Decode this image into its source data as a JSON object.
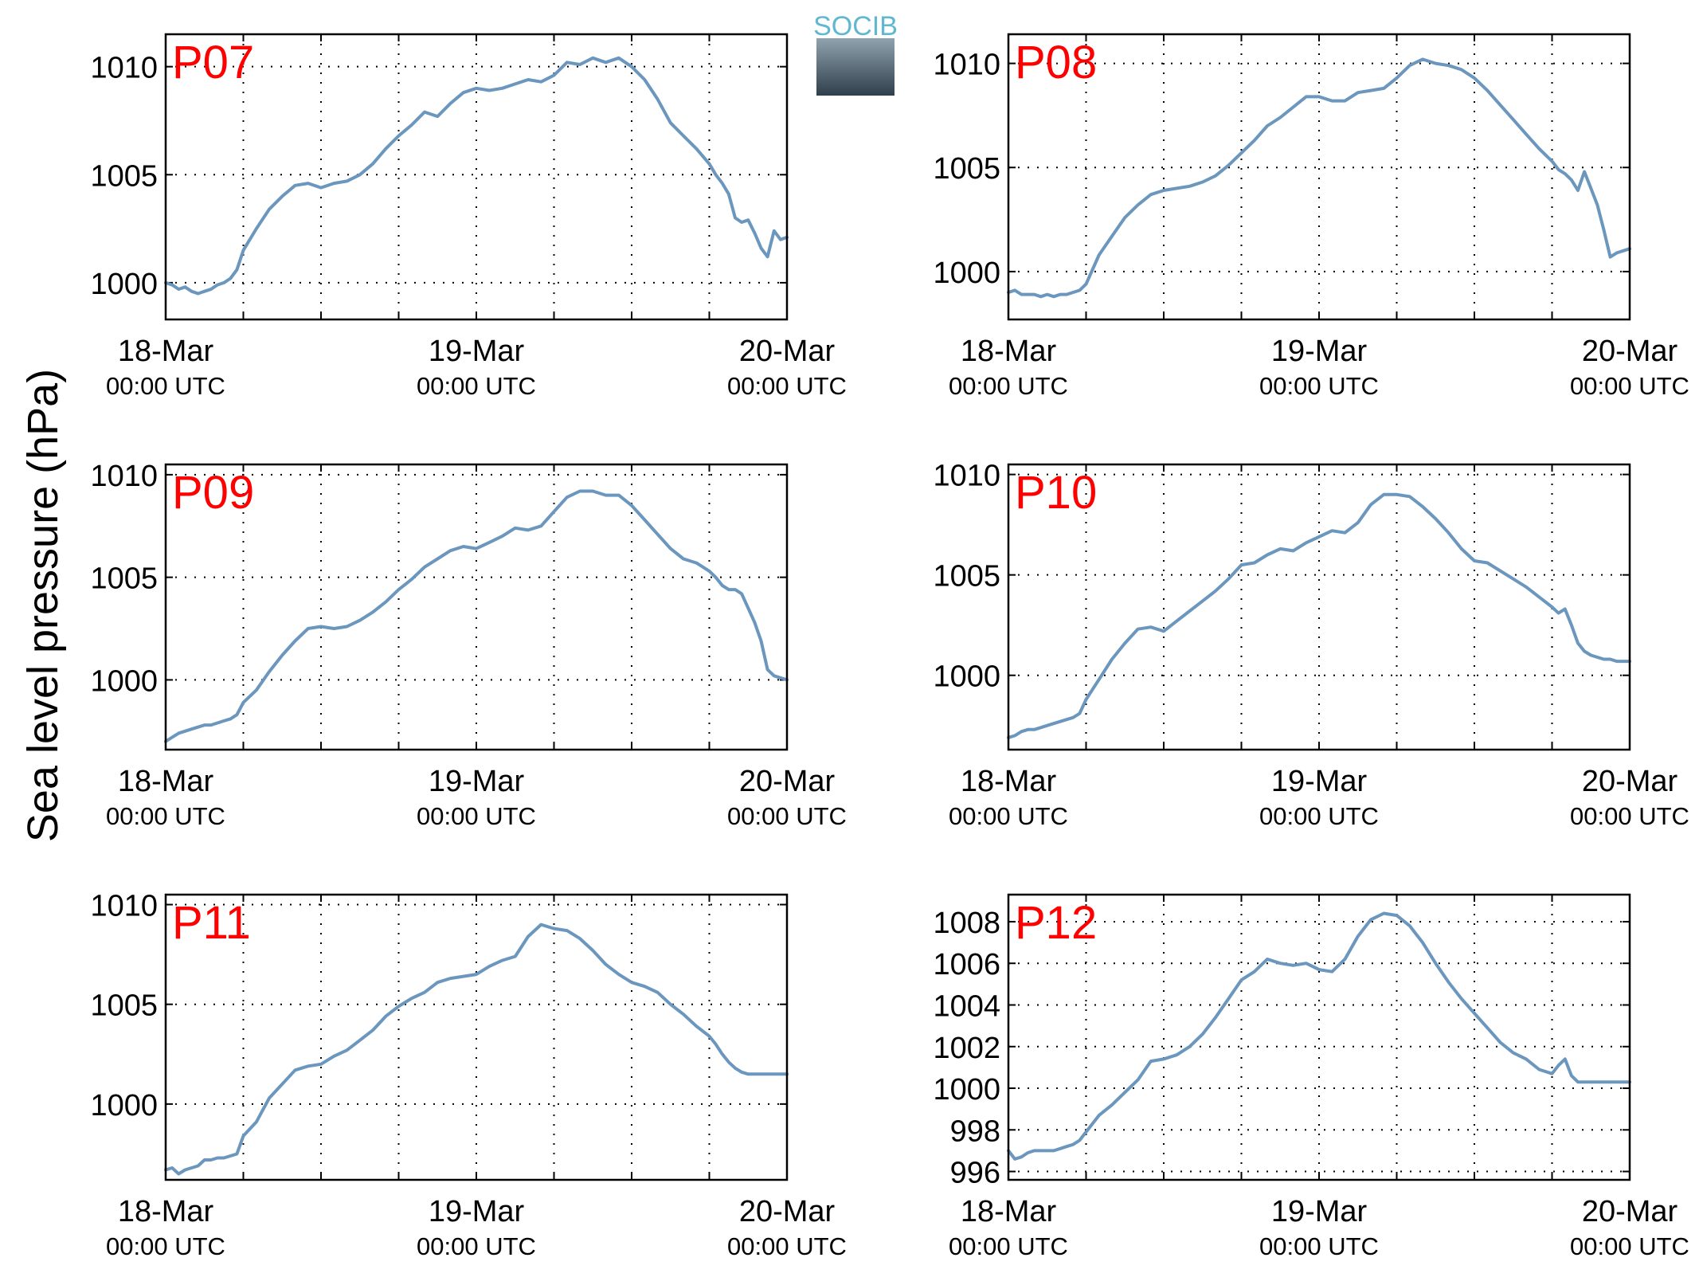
{
  "figure": {
    "ylabel": "Sea level pressure (hPa)",
    "logo_text": "SOCIB",
    "colors": {
      "line": "#6b96bd",
      "panel_label": "#ff0000",
      "axis": "#000000",
      "grid": "#000000"
    },
    "x_ticks": [
      {
        "t": 0,
        "date": "18-Mar",
        "time": "00:00 UTC"
      },
      {
        "t": 24,
        "date": "19-Mar",
        "time": "00:00 UTC"
      },
      {
        "t": 48,
        "date": "20-Mar",
        "time": "00:00 UTC"
      }
    ]
  },
  "chart_data": [
    {
      "type": "line",
      "label": "P07",
      "xlim": [
        0,
        48
      ],
      "ylim": [
        998.3,
        1011.5
      ],
      "yticks": [
        1000,
        1005,
        1010
      ],
      "grid": true,
      "x_hours_grid": [
        6,
        12,
        18,
        30,
        36,
        42
      ],
      "series": [
        {
          "x": [
            0,
            0.5,
            1,
            1.5,
            2,
            2.5,
            3,
            3.5,
            4,
            4.5,
            5,
            5.5,
            6,
            7,
            8,
            9,
            10,
            11,
            12,
            13,
            14,
            15,
            16,
            17,
            18,
            19,
            20,
            21,
            22,
            23,
            24,
            25,
            26,
            27,
            28,
            29,
            30,
            31,
            32,
            33,
            34,
            35,
            36,
            37,
            38,
            39,
            40,
            41,
            42,
            42.5,
            43,
            43.5,
            44,
            44.5,
            45,
            45.5,
            46,
            46.5,
            47,
            47.5,
            48
          ],
          "y": [
            1000,
            999.9,
            999.7,
            999.8,
            999.6,
            999.5,
            999.6,
            999.7,
            999.9,
            1000,
            1000.2,
            1000.6,
            1001.5,
            1002.5,
            1003.4,
            1004.0,
            1004.5,
            1004.6,
            1004.4,
            1004.6,
            1004.7,
            1005.0,
            1005.5,
            1006.2,
            1006.8,
            1007.3,
            1007.9,
            1007.7,
            1008.3,
            1008.8,
            1009.0,
            1008.9,
            1009.0,
            1009.2,
            1009.4,
            1009.3,
            1009.6,
            1010.2,
            1010.1,
            1010.4,
            1010.2,
            1010.4,
            1010.0,
            1009.4,
            1008.5,
            1007.4,
            1006.8,
            1006.2,
            1005.5,
            1005.0,
            1004.6,
            1004.1,
            1003.0,
            1002.8,
            1002.9,
            1002.3,
            1001.6,
            1001.2,
            1002.4,
            1002.0,
            1002.1
          ]
        }
      ]
    },
    {
      "type": "line",
      "label": "P08",
      "xlim": [
        0,
        48
      ],
      "ylim": [
        997.7,
        1011.4
      ],
      "yticks": [
        1000,
        1005,
        1010
      ],
      "grid": true,
      "x_hours_grid": [
        6,
        12,
        18,
        30,
        36,
        42
      ],
      "series": [
        {
          "x": [
            0,
            0.5,
            1,
            1.5,
            2,
            2.5,
            3,
            3.5,
            4,
            4.5,
            5,
            5.5,
            6,
            7,
            8,
            9,
            10,
            11,
            12,
            13,
            14,
            15,
            16,
            17,
            18,
            19,
            20,
            21,
            22,
            23,
            24,
            25,
            26,
            27,
            28,
            29,
            30,
            31,
            32,
            33,
            34,
            35,
            36,
            37,
            38,
            39,
            40,
            41,
            42,
            42.5,
            43,
            43.5,
            44,
            44.5,
            45,
            45.5,
            46,
            46.5,
            47,
            47.5,
            48
          ],
          "y": [
            999,
            999.1,
            998.9,
            998.9,
            998.9,
            998.8,
            998.9,
            998.8,
            998.9,
            998.9,
            999,
            999.1,
            999.4,
            1000.8,
            1001.7,
            1002.6,
            1003.2,
            1003.7,
            1003.9,
            1004.0,
            1004.1,
            1004.3,
            1004.6,
            1005.1,
            1005.7,
            1006.3,
            1007.0,
            1007.4,
            1007.9,
            1008.4,
            1008.4,
            1008.2,
            1008.2,
            1008.6,
            1008.7,
            1008.8,
            1009.3,
            1009.9,
            1010.2,
            1010.0,
            1009.9,
            1009.7,
            1009.3,
            1008.7,
            1008.0,
            1007.3,
            1006.6,
            1005.9,
            1005.3,
            1004.9,
            1004.7,
            1004.4,
            1003.9,
            1004.8,
            1004.0,
            1003.2,
            1002.0,
            1000.7,
            1000.9,
            1001.0,
            1001.1
          ]
        }
      ]
    },
    {
      "type": "line",
      "label": "P09",
      "xlim": [
        0,
        48
      ],
      "ylim": [
        996.6,
        1010.5
      ],
      "yticks": [
        1000,
        1005,
        1010
      ],
      "grid": true,
      "x_hours_grid": [
        6,
        12,
        18,
        30,
        36,
        42
      ],
      "series": [
        {
          "x": [
            0,
            0.5,
            1,
            1.5,
            2,
            2.5,
            3,
            3.5,
            4,
            4.5,
            5,
            5.5,
            6,
            7,
            8,
            9,
            10,
            11,
            12,
            13,
            14,
            15,
            16,
            17,
            18,
            19,
            20,
            21,
            22,
            23,
            24,
            25,
            26,
            27,
            28,
            29,
            30,
            31,
            32,
            33,
            34,
            35,
            36,
            37,
            38,
            39,
            40,
            41,
            42,
            42.5,
            43,
            43.5,
            44,
            44.5,
            45,
            45.5,
            46,
            46.5,
            47,
            47.5,
            48
          ],
          "y": [
            997.0,
            997.2,
            997.4,
            997.5,
            997.6,
            997.7,
            997.8,
            997.8,
            997.9,
            998,
            998.1,
            998.3,
            998.9,
            999.5,
            1000.4,
            1001.2,
            1001.9,
            1002.5,
            1002.6,
            1002.5,
            1002.6,
            1002.9,
            1003.3,
            1003.8,
            1004.4,
            1004.9,
            1005.5,
            1005.9,
            1006.3,
            1006.5,
            1006.4,
            1006.7,
            1007.0,
            1007.4,
            1007.3,
            1007.5,
            1008.2,
            1008.9,
            1009.2,
            1009.2,
            1009.0,
            1009.0,
            1008.5,
            1007.8,
            1007.1,
            1006.4,
            1005.9,
            1005.7,
            1005.3,
            1005.0,
            1004.6,
            1004.4,
            1004.4,
            1004.2,
            1003.5,
            1002.8,
            1001.9,
            1000.5,
            1000.2,
            1000.1,
            1000.0
          ]
        }
      ]
    },
    {
      "type": "line",
      "label": "P10",
      "xlim": [
        0,
        48
      ],
      "ylim": [
        996.3,
        1010.5
      ],
      "yticks": [
        1000,
        1005,
        1010
      ],
      "grid": true,
      "x_hours_grid": [
        6,
        12,
        18,
        30,
        36,
        42
      ],
      "series": [
        {
          "x": [
            0,
            0.5,
            1,
            1.5,
            2,
            2.5,
            3,
            3.5,
            4,
            4.5,
            5,
            5.5,
            6,
            7,
            8,
            9,
            10,
            11,
            12,
            13,
            14,
            15,
            16,
            17,
            18,
            19,
            20,
            21,
            22,
            23,
            24,
            25,
            26,
            27,
            28,
            29,
            30,
            31,
            32,
            33,
            34,
            35,
            36,
            37,
            38,
            39,
            40,
            41,
            42,
            42.5,
            43,
            43.5,
            44,
            44.5,
            45,
            45.5,
            46,
            46.5,
            47,
            47.5,
            48
          ],
          "y": [
            996.9,
            997.0,
            997.2,
            997.3,
            997.3,
            997.4,
            997.5,
            997.6,
            997.7,
            997.8,
            997.9,
            998.1,
            998.8,
            999.8,
            1000.8,
            1001.6,
            1002.3,
            1002.4,
            1002.2,
            1002.7,
            1003.2,
            1003.7,
            1004.2,
            1004.8,
            1005.5,
            1005.6,
            1006.0,
            1006.3,
            1006.2,
            1006.6,
            1006.9,
            1007.2,
            1007.1,
            1007.6,
            1008.5,
            1009.0,
            1009.0,
            1008.9,
            1008.4,
            1007.8,
            1007.1,
            1006.3,
            1005.7,
            1005.6,
            1005.2,
            1004.8,
            1004.4,
            1003.9,
            1003.4,
            1003.1,
            1003.3,
            1002.5,
            1001.6,
            1001.2,
            1001.0,
            1000.9,
            1000.8,
            1000.8,
            1000.7,
            1000.7,
            1000.7
          ]
        }
      ]
    },
    {
      "type": "line",
      "label": "P11",
      "xlim": [
        0,
        48
      ],
      "ylim": [
        996.2,
        1010.5
      ],
      "yticks": [
        1000,
        1005,
        1010
      ],
      "grid": true,
      "x_hours_grid": [
        6,
        12,
        18,
        30,
        36,
        42
      ],
      "series": [
        {
          "x": [
            0,
            0.5,
            1,
            1.5,
            2,
            2.5,
            3,
            3.5,
            4,
            4.5,
            5,
            5.5,
            6,
            7,
            8,
            9,
            10,
            11,
            12,
            13,
            14,
            15,
            16,
            17,
            18,
            19,
            20,
            21,
            22,
            23,
            24,
            25,
            26,
            27,
            28,
            29,
            30,
            31,
            32,
            33,
            34,
            35,
            36,
            37,
            38,
            39,
            40,
            41,
            42,
            42.5,
            43,
            43.5,
            44,
            44.5,
            45,
            45.5,
            46,
            46.5,
            47,
            47.5,
            48
          ],
          "y": [
            996.7,
            996.8,
            996.5,
            996.7,
            996.8,
            996.9,
            997.2,
            997.2,
            997.3,
            997.3,
            997.4,
            997.5,
            998.4,
            999.1,
            1000.3,
            1001.0,
            1001.7,
            1001.9,
            1002.0,
            1002.4,
            1002.7,
            1003.2,
            1003.7,
            1004.4,
            1004.9,
            1005.3,
            1005.6,
            1006.1,
            1006.3,
            1006.4,
            1006.5,
            1006.9,
            1007.2,
            1007.4,
            1008.4,
            1009.0,
            1008.8,
            1008.7,
            1008.3,
            1007.7,
            1007.0,
            1006.5,
            1006.1,
            1005.9,
            1005.6,
            1005.0,
            1004.5,
            1003.9,
            1003.4,
            1003.0,
            1002.5,
            1002.1,
            1001.8,
            1001.6,
            1001.5,
            1001.5,
            1001.5,
            1001.5,
            1001.5,
            1001.5,
            1001.5
          ]
        }
      ]
    },
    {
      "type": "line",
      "label": "P12",
      "xlim": [
        0,
        48
      ],
      "ylim": [
        995.6,
        1009.3
      ],
      "yticks": [
        996,
        998,
        1000,
        1002,
        1004,
        1006,
        1008
      ],
      "grid": true,
      "x_hours_grid": [
        6,
        12,
        18,
        30,
        36,
        42
      ],
      "series": [
        {
          "x": [
            0,
            0.5,
            1,
            1.5,
            2,
            2.5,
            3,
            3.5,
            4,
            4.5,
            5,
            5.5,
            6,
            7,
            8,
            9,
            10,
            11,
            12,
            13,
            14,
            15,
            16,
            17,
            18,
            19,
            20,
            21,
            22,
            23,
            24,
            25,
            26,
            27,
            28,
            29,
            30,
            31,
            32,
            33,
            34,
            35,
            36,
            37,
            38,
            39,
            40,
            41,
            42,
            42.5,
            43,
            43.5,
            44,
            44.5,
            45,
            45.5,
            46,
            46.5,
            47,
            47.5,
            48
          ],
          "y": [
            997.0,
            996.6,
            996.7,
            996.9,
            997.0,
            997.0,
            997.0,
            997.0,
            997.1,
            997.2,
            997.3,
            997.5,
            997.9,
            998.7,
            999.2,
            999.8,
            1000.4,
            1001.3,
            1001.4,
            1001.6,
            1002.0,
            1002.6,
            1003.4,
            1004.3,
            1005.2,
            1005.6,
            1006.2,
            1006.0,
            1005.9,
            1006.0,
            1005.7,
            1005.6,
            1006.2,
            1007.3,
            1008.1,
            1008.4,
            1008.3,
            1007.8,
            1007.0,
            1006.0,
            1005.1,
            1004.3,
            1003.6,
            1002.9,
            1002.2,
            1001.7,
            1001.4,
            1000.9,
            1000.7,
            1001.1,
            1001.4,
            1000.6,
            1000.3,
            1000.3,
            1000.3,
            1000.3,
            1000.3,
            1000.3,
            1000.3,
            1000.3,
            1000.3
          ]
        }
      ]
    }
  ]
}
